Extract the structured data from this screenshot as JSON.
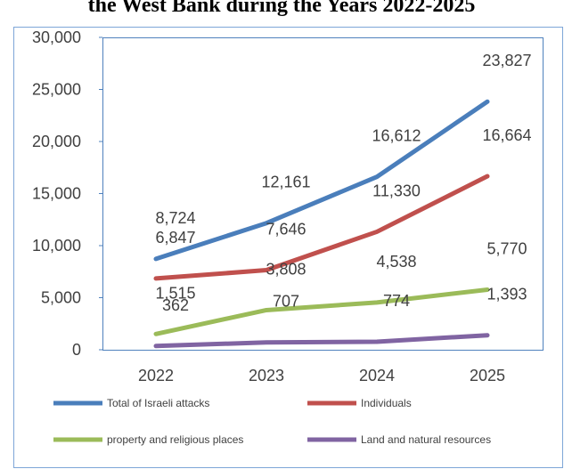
{
  "chart_data": {
    "type": "line",
    "title": "the West Bank during the Years 2022-2025",
    "categories": [
      "2022",
      "2023",
      "2024",
      "2025"
    ],
    "series": [
      {
        "name": "Total of Israeli attacks",
        "color": "#4a7ebb",
        "values": [
          8724,
          12161,
          16612,
          23827
        ],
        "value_labels": [
          "8,724",
          "12,161",
          "16,612",
          "23,827"
        ]
      },
      {
        "name": "Individuals",
        "color": "#c0504d",
        "values": [
          6847,
          7646,
          11330,
          16664
        ],
        "value_labels": [
          "6,847",
          "7,646",
          "11,330",
          "16,664"
        ]
      },
      {
        "name": "property and religious places",
        "color": "#9bbb59",
        "values": [
          1515,
          3808,
          4538,
          5770
        ],
        "value_labels": [
          "1,515",
          "3,808",
          "4,538",
          "5,770"
        ]
      },
      {
        "name": "Land and natural resources",
        "color": "#8064a2",
        "values": [
          362,
          707,
          774,
          1393
        ],
        "value_labels": [
          "362",
          "707",
          "774",
          "1,393"
        ]
      }
    ],
    "ylim": [
      0,
      30000
    ],
    "yticks": [
      0,
      {
        "value": 5000,
        "label": "5,000"
      },
      {
        "value": 10000,
        "label": "10,000"
      },
      {
        "value": 15000,
        "label": "15,000"
      },
      {
        "value": 20000,
        "label": "20,000"
      },
      {
        "value": 25000,
        "label": "25,000"
      },
      {
        "value": 30000,
        "label": "30,000"
      }
    ]
  }
}
